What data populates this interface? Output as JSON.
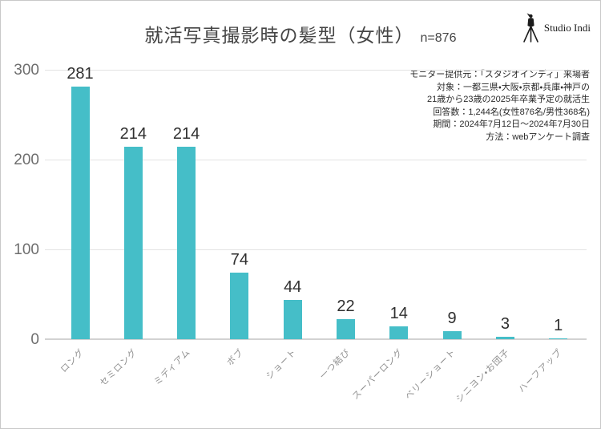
{
  "header": {
    "title": "就活写真撮影時の髪型（女性）",
    "sample": "n=876"
  },
  "logo": {
    "icon": "camera-tripod-icon",
    "text": "Studio Indi"
  },
  "meta": {
    "lines": [
      "モニター提供元：「スタジオインディ」来場者",
      "対象：一都三県・大阪・京都・兵庫・神戸の",
      "21歳から23歳の2025年卒業予定の就活生",
      "回答数：1,244名(女性876名/男性368名)",
      "期間：2024年7月12日～2024年7月30日",
      "方法：webアンケート調査"
    ]
  },
  "chart_data": {
    "type": "bar",
    "title": "就活写真撮影時の髪型（女性） n=876",
    "categories": [
      "ロング",
      "セミロング",
      "ミディアム",
      "ボブ",
      "ショート",
      "一つ結び",
      "スーパーロング",
      "ベリーショート",
      "シニヨン・お団子",
      "ハーフアップ"
    ],
    "values": [
      281,
      214,
      214,
      74,
      44,
      22,
      14,
      9,
      3,
      1
    ],
    "xlabel": "",
    "ylabel": "",
    "ylim": [
      0,
      300
    ],
    "yticks": [
      0,
      100,
      200,
      300
    ],
    "grid": true,
    "value_labels": true,
    "bar_color": "#45bec8",
    "legend": "none"
  }
}
